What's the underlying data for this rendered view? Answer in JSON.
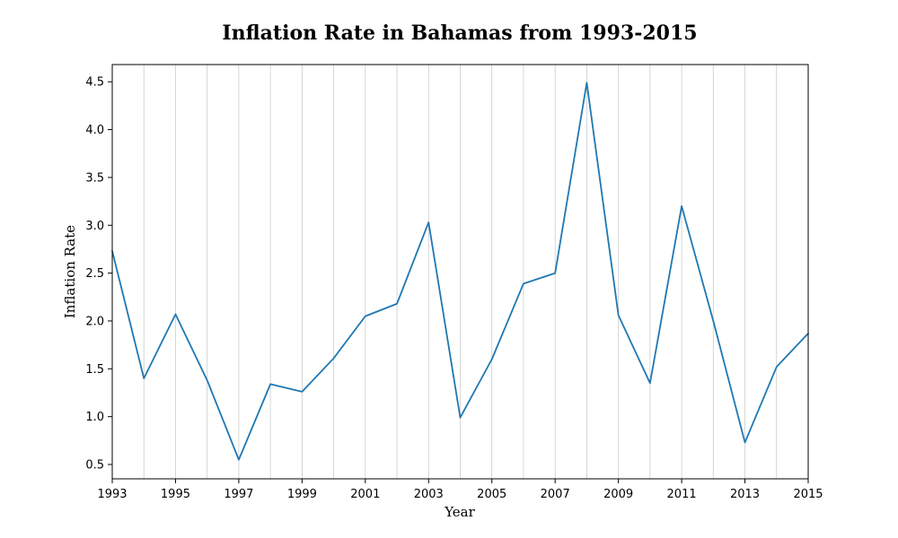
{
  "chart_data": {
    "type": "line",
    "title": "Inflation Rate in Bahamas from 1993-2015",
    "xlabel": "Year",
    "ylabel": "Inflation Rate",
    "x": [
      1993,
      1994,
      1995,
      1996,
      1997,
      1998,
      1999,
      2000,
      2001,
      2002,
      2003,
      2004,
      2005,
      2006,
      2007,
      2008,
      2009,
      2010,
      2011,
      2012,
      2013,
      2014,
      2015
    ],
    "series": [
      {
        "values": [
          2.73,
          1.4,
          2.07,
          1.38,
          0.55,
          1.34,
          1.26,
          1.61,
          2.05,
          2.18,
          3.03,
          0.99,
          1.6,
          2.39,
          2.5,
          4.49,
          2.06,
          1.35,
          3.2,
          2.0,
          0.73,
          1.52,
          1.87
        ],
        "color": "#1f77b4"
      }
    ],
    "xlim": [
      1993,
      2015
    ],
    "ylim": [
      0.35,
      4.68
    ],
    "x_ticks": [
      "1993",
      "1995",
      "1997",
      "1999",
      "2001",
      "2003",
      "2005",
      "2007",
      "2009",
      "2011",
      "2013",
      "2015"
    ],
    "y_ticks": [
      "0.5",
      "1.0",
      "1.5",
      "2.0",
      "2.5",
      "3.0",
      "3.5",
      "4.0",
      "4.5"
    ],
    "grid": "vertical",
    "legend": "none"
  }
}
